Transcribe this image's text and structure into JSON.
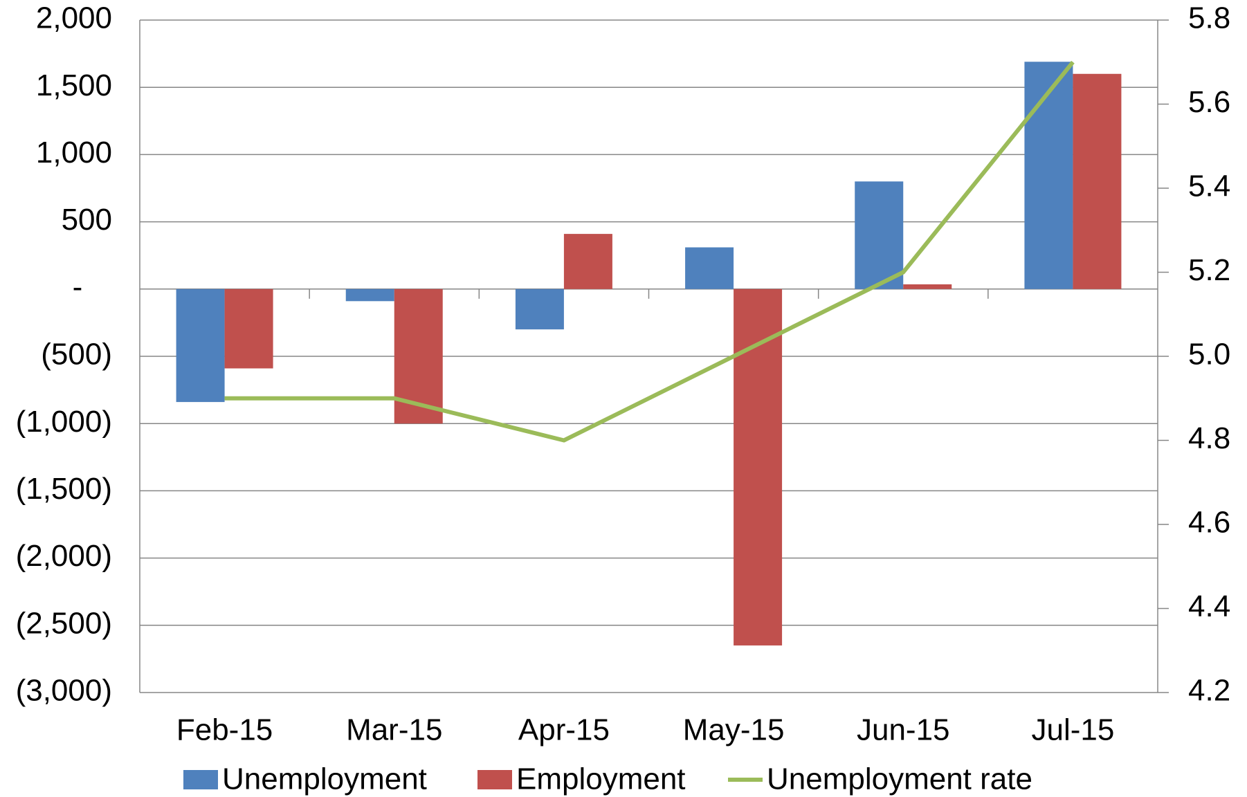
{
  "chart_data": {
    "type": "bar-line",
    "categories": [
      "Feb-15",
      "Mar-15",
      "Apr-15",
      "May-15",
      "Jun-15",
      "Jul-15"
    ],
    "series": [
      {
        "name": "Unemployment",
        "type": "bar",
        "color": "#4f81bd",
        "values": [
          -840,
          -90,
          -300,
          310,
          800,
          1690
        ]
      },
      {
        "name": "Employment",
        "type": "bar",
        "color": "#c0504d",
        "values": [
          -590,
          -1000,
          410,
          -2650,
          35,
          1600
        ]
      },
      {
        "name": "Unemployment rate",
        "type": "line",
        "axis": "y2",
        "color": "#9bbb59",
        "values": [
          4.9,
          4.9,
          4.8,
          5.0,
          5.2,
          5.7
        ]
      }
    ],
    "ylim": [
      -3000,
      2000
    ],
    "yticks": [
      {
        "value": -3000,
        "label": "(3,000)"
      },
      {
        "value": -2500,
        "label": "(2,500)"
      },
      {
        "value": -2000,
        "label": "(2,000)"
      },
      {
        "value": -1500,
        "label": "(1,500)"
      },
      {
        "value": -1000,
        "label": "(1,000)"
      },
      {
        "value": -500,
        "label": "(500)"
      },
      {
        "value": 0,
        "label": "-"
      },
      500,
      {
        "value": 1000,
        "label": "1,000"
      },
      {
        "value": 1500,
        "label": "1,500"
      },
      {
        "value": 2000,
        "label": "2,000"
      }
    ],
    "y2lim": [
      4.2,
      5.8
    ],
    "y2ticks": [
      4.2,
      4.4,
      4.6,
      4.8,
      {
        "value": 5.0,
        "label": "5.0"
      },
      5.2,
      5.4,
      5.6,
      5.8
    ],
    "grid": true,
    "legend": "bottom"
  }
}
